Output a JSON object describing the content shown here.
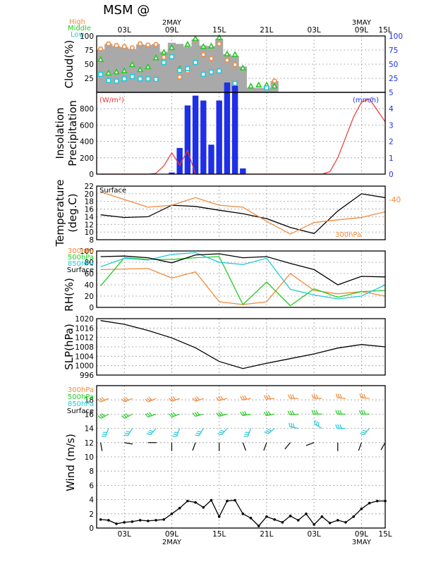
{
  "title": "MSM  @",
  "colors": {
    "high": "#f08a3c",
    "middle": "#22cc22",
    "low": "#22c8d8",
    "surface": "#000000",
    "cloud_fill": "#a9a9a9",
    "insolation": "#ee3333",
    "precip": "#1f2fe6",
    "right_axis": "#1f2fe6",
    "grid": "#9a9a9a"
  },
  "time_axis": {
    "top_ticks": [
      "03L",
      "09L",
      "15L",
      "21L",
      "03L",
      "09L",
      "15L"
    ],
    "bottom_ticks": [
      "03L",
      "09L",
      "15L",
      "21L",
      "03L",
      "09L",
      "15L"
    ],
    "dates_top": [
      {
        "label": "2MAY",
        "hour": 9
      },
      {
        "label": "3MAY",
        "hour": 33
      }
    ],
    "dates_bottom": [
      {
        "label": "2MAY",
        "hour": 9
      },
      {
        "label": "3MAY",
        "hour": 33
      }
    ]
  },
  "chart_data": [
    {
      "id": "cloud",
      "type": "area",
      "ylabel": "Cloud(%)",
      "ylim": [
        0,
        100
      ],
      "yticks_left": [
        "25",
        "50",
        "75",
        "100"
      ],
      "yticks_right": [
        "25",
        "50",
        "75",
        "100"
      ],
      "legend": [
        "High",
        "Middle",
        "Low"
      ],
      "x": [
        0,
        1,
        2,
        3,
        4,
        5,
        6,
        7,
        8,
        9,
        10,
        11,
        12,
        13,
        14,
        15,
        16,
        17,
        18,
        19,
        20,
        21,
        22,
        23,
        24
      ],
      "series": [
        {
          "name": "High",
          "marker": "circle",
          "values": [
            77,
            86,
            83,
            81,
            79,
            86,
            84,
            85,
            62,
            null,
            27,
            38,
            93,
            67,
            60,
            86,
            57,
            49,
            null,
            null,
            null,
            null,
            20,
            null,
            null
          ]
        },
        {
          "name": "Middle",
          "marker": "triangle",
          "values": [
            58,
            34,
            36,
            38,
            49,
            40,
            45,
            61,
            71,
            79,
            42,
            85,
            95,
            81,
            82,
            97,
            68,
            67,
            43,
            11,
            13,
            13,
            11,
            null,
            null
          ]
        },
        {
          "name": "Low",
          "marker": "square",
          "values": [
            32,
            21,
            20,
            24,
            28,
            24,
            24,
            23,
            53,
            63,
            39,
            42,
            53,
            32,
            36,
            38,
            8,
            16,
            null,
            null,
            null,
            8,
            null,
            null,
            null
          ]
        }
      ],
      "total_cover": [
        76,
        86,
        82,
        80,
        77,
        85,
        84,
        86,
        72,
        88,
        86,
        81,
        94,
        83,
        82,
        95,
        68,
        65,
        46,
        8,
        8,
        8,
        20,
        0,
        0
      ]
    },
    {
      "id": "insolation_precip",
      "type": "bar",
      "ylabel": "Insolation Precipitation",
      "left_unit": "(W/m²)",
      "right_unit": "(mm/h)",
      "ylim_left": [
        0,
        1000
      ],
      "ylim_right": [
        0,
        5
      ],
      "yticks_left": [
        "0",
        "200",
        "400",
        "600",
        "800"
      ],
      "yticks_right": [
        "0",
        "1",
        "2",
        "3",
        "4",
        "5"
      ],
      "insolation": {
        "x": [
          0,
          1,
          2,
          3,
          4,
          5,
          6,
          7,
          8,
          9,
          10,
          11,
          12,
          13,
          14,
          15,
          16,
          17,
          18,
          19,
          20,
          21,
          22,
          23,
          24,
          25,
          26,
          27,
          28,
          29,
          30,
          31,
          32,
          33,
          34,
          35,
          36
        ],
        "values": [
          0,
          0,
          0,
          0,
          0,
          0,
          0,
          10,
          100,
          260,
          110,
          290,
          0,
          0,
          0,
          0,
          0,
          0,
          0,
          0,
          0,
          0,
          0,
          0,
          0,
          0,
          0,
          0,
          0,
          30,
          200,
          450,
          700,
          880,
          920,
          780,
          640
        ]
      },
      "precip": {
        "x": [
          9,
          10,
          11,
          12,
          13,
          14,
          15,
          16,
          17,
          18
        ],
        "values": [
          0.1,
          1.6,
          4.2,
          4.8,
          4.5,
          1.8,
          4.5,
          5.6,
          5.4,
          0.35
        ]
      }
    },
    {
      "id": "temperature",
      "type": "line",
      "ylabel": "Temperature (deg.C)",
      "ylim": [
        8,
        22
      ],
      "yticks": [
        "8",
        "10",
        "12",
        "14",
        "16",
        "18",
        "20",
        "22"
      ],
      "right_tick": "-40",
      "x": [
        0,
        3,
        6,
        9,
        12,
        15,
        18,
        21,
        24,
        27,
        30,
        33,
        36
      ],
      "series": [
        {
          "name": "Surface",
          "values": [
            14.5,
            13.8,
            14.0,
            17.0,
            16.7,
            15.7,
            14.8,
            13.5,
            11.2,
            9.6,
            15.5,
            20.0,
            19.0
          ]
        },
        {
          "name": "300hPa",
          "values": [
            20.5,
            18.5,
            16.5,
            17.0,
            19.0,
            17.0,
            16.5,
            12.8,
            9.5,
            12.5,
            13.2,
            13.8,
            15.3
          ]
        }
      ]
    },
    {
      "id": "rh",
      "type": "line",
      "ylabel": "RH(%)",
      "ylim": [
        0,
        100
      ],
      "yticks": [
        "0",
        "20",
        "40",
        "60",
        "80",
        "100"
      ],
      "x": [
        0,
        3,
        6,
        9,
        12,
        15,
        18,
        21,
        24,
        27,
        30,
        33,
        36
      ],
      "series": [
        {
          "name": "300hPa",
          "values": [
            67,
            68,
            69,
            52,
            63,
            10,
            5,
            10,
            60,
            30,
            24,
            28,
            20
          ]
        },
        {
          "name": "500hPa",
          "values": [
            38,
            88,
            85,
            85,
            88,
            90,
            5,
            45,
            3,
            33,
            18,
            28,
            30
          ]
        },
        {
          "name": "850hPa",
          "values": [
            72,
            87,
            84,
            94,
            97,
            80,
            76,
            87,
            32,
            22,
            15,
            20,
            40
          ]
        },
        {
          "name": "Surface",
          "values": [
            90,
            91,
            88,
            79,
            93,
            95,
            88,
            90,
            78,
            67,
            40,
            55,
            54
          ]
        }
      ]
    },
    {
      "id": "slp",
      "type": "line",
      "ylabel": "SLP(hPa)",
      "ylim": [
        996,
        1020
      ],
      "yticks": [
        "996",
        "1000",
        "1004",
        "1008",
        "1012",
        "1016",
        "1020"
      ],
      "x": [
        0,
        3,
        6,
        9,
        12,
        15,
        18,
        21,
        24,
        27,
        30,
        33,
        36
      ],
      "series": [
        {
          "name": "Surface",
          "values": [
            1019.2,
            1017.6,
            1015.0,
            1011.8,
            1007.6,
            1001.8,
            998.8,
            1001.0,
            1003.0,
            1005.0,
            1007.5,
            1009.0,
            1008.0
          ]
        }
      ]
    },
    {
      "id": "wind",
      "type": "line",
      "ylabel": "Wind  (m/s)",
      "ylim": [
        0,
        20
      ],
      "yticks": [
        "0",
        "2",
        "4",
        "6",
        "8",
        "10",
        "12",
        "14",
        "16",
        "18"
      ],
      "legend": [
        "300hPa",
        "500hPa",
        "850hPa",
        "Surface"
      ],
      "x": [
        0,
        1,
        2,
        3,
        4,
        5,
        6,
        7,
        8,
        9,
        10,
        11,
        12,
        13,
        14,
        15,
        16,
        17,
        18,
        19,
        20,
        21,
        22,
        23,
        24,
        25,
        26,
        27,
        28,
        29,
        30,
        31,
        32,
        33,
        34,
        35,
        36
      ],
      "series": [
        {
          "name": "Surface",
          "values": [
            1.2,
            1.1,
            0.6,
            0.8,
            0.9,
            1.1,
            1.0,
            1.1,
            1.2,
            2.0,
            2.8,
            3.8,
            3.6,
            2.9,
            3.9,
            1.6,
            3.8,
            3.9,
            2.0,
            1.4,
            0.3,
            1.6,
            1.2,
            0.8,
            1.7,
            1.1,
            2.0,
            0.5,
            1.6,
            0.7,
            1.1,
            0.8,
            1.6,
            2.7,
            3.5,
            3.8,
            3.8
          ]
        }
      ],
      "barb_levels": [
        {
          "name": "300hPa",
          "y": 18.2,
          "step": 3,
          "start": 1,
          "dir": [
            245,
            245,
            245,
            250,
            250,
            255,
            260,
            265,
            270,
            270,
            275,
            275
          ]
        },
        {
          "name": "500hPa",
          "y": 16.0,
          "step": 3,
          "start": 1,
          "dir": [
            240,
            240,
            250,
            250,
            255,
            255,
            260,
            260,
            265,
            270,
            270,
            270
          ]
        },
        {
          "name": "850hPa",
          "y": 14.0,
          "step": 3,
          "start": 1,
          "dir": [
            200,
            210,
            220,
            200,
            210,
            220,
            200,
            230,
            280,
            300,
            270,
            220
          ]
        },
        {
          "name": "Surface",
          "y": 12.0,
          "step": 3,
          "start": 0,
          "dir": [
            170,
            100,
            90,
            180,
            200,
            180,
            160,
            200,
            220,
            250,
            180,
            200,
            210
          ]
        }
      ]
    }
  ]
}
